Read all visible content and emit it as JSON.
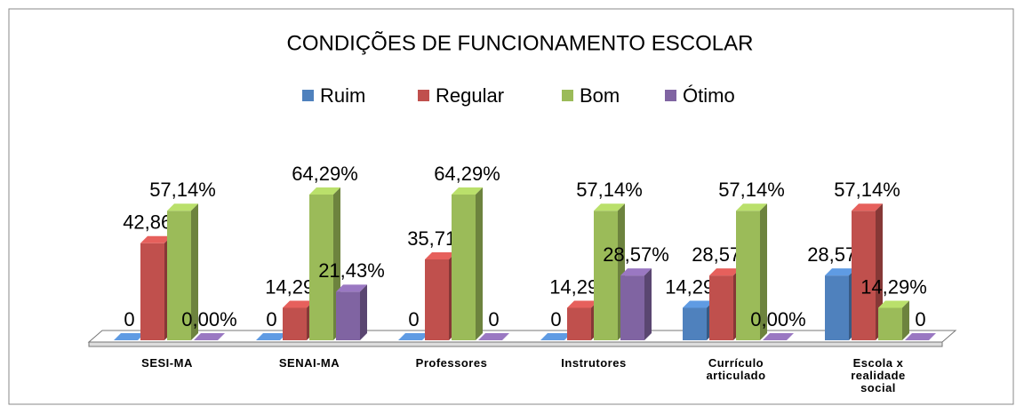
{
  "chart_data": {
    "type": "bar3d",
    "title": "CONDIÇÕES DE FUNCIONAMENTO ESCOLAR",
    "categories": [
      "SESI-MA",
      "SENAI-MA",
      "Professores",
      "Instrutores",
      "Currículo articulado",
      "Escola x realidade social"
    ],
    "series": [
      {
        "name": "Ruim",
        "color": "#4f81bd",
        "values": [
          0,
          0,
          0,
          0,
          14.29,
          28.57
        ],
        "value_labels": [
          "0",
          "0",
          "0",
          "0",
          "14,29%",
          "28,57%"
        ]
      },
      {
        "name": "Regular",
        "color": "#c0504d",
        "values": [
          42.86,
          14.29,
          35.71,
          14.29,
          28.57,
          57.14
        ],
        "value_labels": [
          "42,86%",
          "14,29%",
          "35,71%",
          "14,29%",
          "28,57%",
          "57,14%"
        ]
      },
      {
        "name": "Bom",
        "color": "#9bbb59",
        "values": [
          57.14,
          64.29,
          64.29,
          57.14,
          57.14,
          14.29
        ],
        "value_labels": [
          "57,14%",
          "64,29%",
          "64,29%",
          "57,14%",
          "57,14%",
          "14,29%"
        ]
      },
      {
        "name": "Ótimo",
        "color": "#8064a2",
        "values": [
          0,
          21.43,
          0,
          28.57,
          0,
          0
        ],
        "value_labels": [
          "0,00%",
          "21,43%",
          "0",
          "28,57%",
          "0,00%",
          "0"
        ]
      }
    ],
    "legend": "top"
  }
}
